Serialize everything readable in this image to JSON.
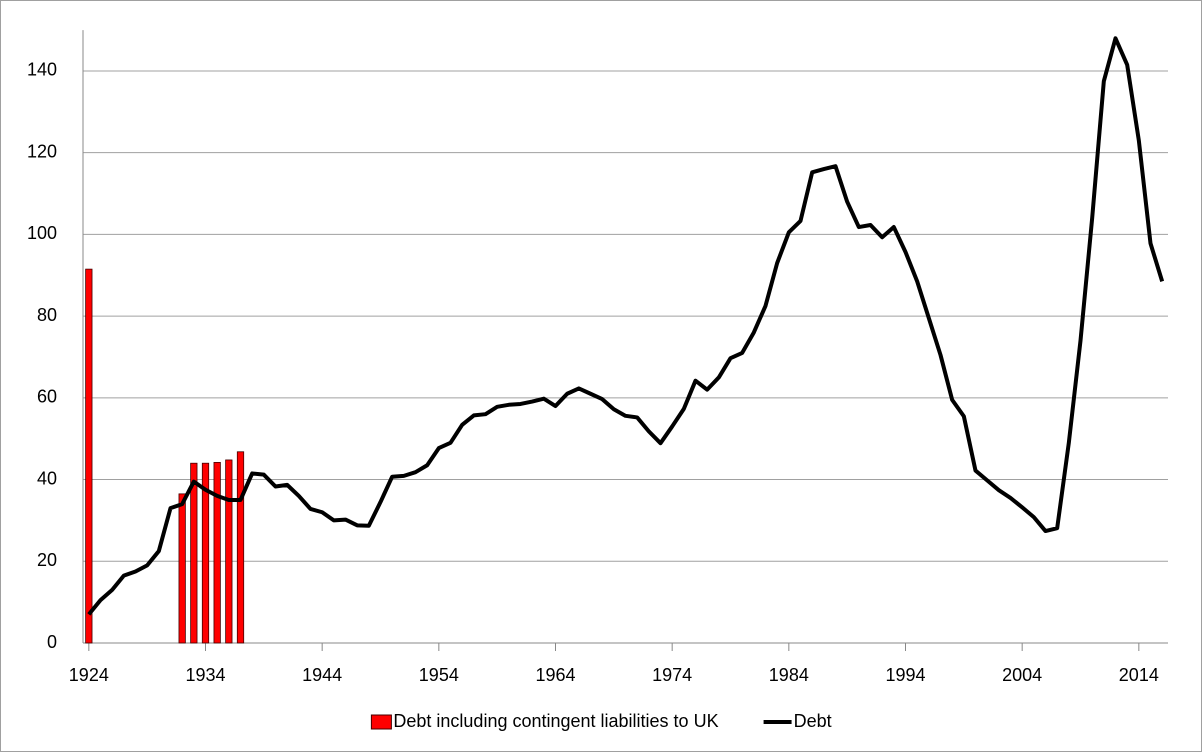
{
  "chart_data": {
    "type": "combo",
    "series": [
      {
        "name": "Debt including contingent liabilities to UK",
        "type": "bar",
        "color": "#ff0000",
        "x": [
          1924,
          1932,
          1933,
          1934,
          1935,
          1936,
          1937
        ],
        "values": [
          91.5,
          36.5,
          44,
          44,
          44.2,
          44.8,
          46.8
        ]
      },
      {
        "name": "Debt",
        "type": "line",
        "color": "#000000",
        "x": [
          1924,
          1925,
          1926,
          1927,
          1928,
          1929,
          1930,
          1931,
          1932,
          1933,
          1934,
          1935,
          1936,
          1937,
          1938,
          1939,
          1940,
          1941,
          1942,
          1943,
          1944,
          1945,
          1946,
          1947,
          1948,
          1949,
          1950,
          1951,
          1952,
          1953,
          1954,
          1955,
          1956,
          1957,
          1958,
          1959,
          1960,
          1961,
          1962,
          1963,
          1964,
          1965,
          1966,
          1967,
          1968,
          1969,
          1970,
          1971,
          1972,
          1973,
          1974,
          1975,
          1976,
          1977,
          1978,
          1979,
          1980,
          1981,
          1982,
          1983,
          1984,
          1985,
          1986,
          1987,
          1988,
          1989,
          1990,
          1991,
          1992,
          1993,
          1994,
          1995,
          1996,
          1997,
          1998,
          1999,
          2000,
          2001,
          2002,
          2003,
          2004,
          2005,
          2006,
          2007,
          2008,
          2009,
          2010,
          2011,
          2012,
          2013,
          2014,
          2015,
          2016
        ],
        "values": [
          7,
          10.5,
          13,
          16.5,
          17.5,
          19,
          22.5,
          33,
          34,
          39.5,
          37.5,
          36,
          35,
          35,
          41.5,
          41.2,
          38.3,
          38.7,
          36,
          32.8,
          32,
          30,
          30.2,
          28.8,
          28.7,
          34.5,
          40.7,
          40.9,
          41.8,
          43.5,
          47.7,
          49,
          53.4,
          55.7,
          56,
          57.8,
          58.3,
          58.5,
          59.1,
          59.8,
          58,
          61,
          62.3,
          61,
          59.7,
          57.2,
          55.6,
          55.2,
          51.8,
          48.9,
          53,
          57.3,
          64.2,
          62,
          65,
          69.7,
          71,
          76,
          82.5,
          93,
          100.5,
          103.3,
          115.2,
          116,
          116.7,
          108,
          101.8,
          102.3,
          99.3,
          101.8,
          95.7,
          88.5,
          79.5,
          70.5,
          59.5,
          55.5,
          42.2,
          39.8,
          37.4,
          35.5,
          33.2,
          30.8,
          27.4,
          28.1,
          49,
          74,
          104,
          137.5,
          148,
          141.5,
          123,
          97.8,
          88.5
        ]
      }
    ],
    "xlim": [
      1923.5,
      2016.5
    ],
    "xticks": [
      1924,
      1934,
      1944,
      1954,
      1964,
      1974,
      1984,
      1994,
      2004,
      2014
    ],
    "ylim": [
      0,
      150
    ],
    "yticks": [
      0,
      20,
      40,
      60,
      80,
      100,
      120,
      140
    ],
    "grid": true,
    "legend": "bottom"
  }
}
